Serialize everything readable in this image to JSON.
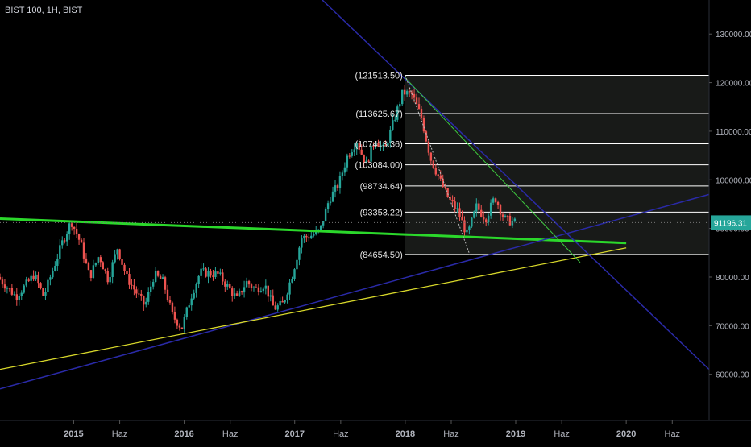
{
  "header": {
    "symbol_title": "BIST 100, 1H, BIST"
  },
  "colors": {
    "background": "#000000",
    "axis_text": "#b2b5be",
    "candle_up": "#26a69a",
    "candle_down": "#ef5350",
    "fib_line": "#ffffff",
    "fib_fill": "#1c1e1c",
    "green_trendline": "#2bd82b",
    "blue_trendline": "#2a2aa8",
    "yellow_trendline": "#d6d62a",
    "thin_green_trendline": "#3ec93e",
    "price_badge": "#26a69a"
  },
  "chart_data": {
    "type": "candlestick",
    "title": "BIST 100, 1H, BIST",
    "x_ticks": [
      "2015",
      "Haz",
      "2016",
      "Haz",
      "2017",
      "Haz",
      "2018",
      "Haz",
      "2019",
      "Haz",
      "2020",
      "Haz"
    ],
    "x_tick_dates": [
      "2015-01",
      "2015-06",
      "2016-01",
      "2016-06",
      "2017-01",
      "2017-06",
      "2018-01",
      "2018-06",
      "2019-01",
      "2019-06",
      "2020-01",
      "2020-06"
    ],
    "x_range": [
      "2014-05",
      "2020-10"
    ],
    "y_ticks": [
      "130000.00",
      "120000.00",
      "110000.00",
      "100000.00",
      "90000.00",
      "80000.00",
      "70000.00",
      "60000.00"
    ],
    "y_range": [
      50500,
      137000
    ],
    "current_price": "91196.31",
    "current_price_value": 91196.31,
    "fib_levels": [
      {
        "label": "(121513.50)",
        "value": 121513.5
      },
      {
        "label": "(113625.67)",
        "value": 113625.67
      },
      {
        "label": "(107413.36)",
        "value": 107413.36
      },
      {
        "label": "(103084.00)",
        "value": 103084.0
      },
      {
        "label": "(98734.64)",
        "value": 98734.64
      },
      {
        "label": "(93353.22)",
        "value": 93353.22
      },
      {
        "label": "(84654.50)",
        "value": 84654.5
      }
    ],
    "fib_range_dates": [
      "2018-01",
      "2020-10"
    ],
    "trendlines": [
      {
        "id": "green-thick",
        "from": [
          "2014-05",
          92000
        ],
        "to": [
          "2020-01",
          87000
        ]
      },
      {
        "id": "blue-lower",
        "from": [
          "2014-05",
          57000
        ],
        "to": [
          "2020-10",
          97000
        ]
      },
      {
        "id": "blue-upper",
        "from": [
          "2017-04",
          137000
        ],
        "to": [
          "2020-10",
          61000
        ]
      },
      {
        "id": "yellow",
        "from": [
          "2014-05",
          61000
        ],
        "to": [
          "2020-01",
          86000
        ]
      },
      {
        "id": "green-thin",
        "from": [
          "2018-01",
          121000
        ],
        "to": [
          "2019-08",
          83000
        ]
      }
    ],
    "price_path": [
      [
        "2014-05",
        80000
      ],
      [
        "2014-07",
        76000
      ],
      [
        "2014-09",
        80500
      ],
      [
        "2014-10",
        76000
      ],
      [
        "2014-12",
        87000
      ],
      [
        "2015-01",
        91500
      ],
      [
        "2015-02",
        87000
      ],
      [
        "2015-03",
        80000
      ],
      [
        "2015-04",
        84500
      ],
      [
        "2015-05",
        79500
      ],
      [
        "2015-06",
        86000
      ],
      [
        "2015-07",
        80000
      ],
      [
        "2015-08",
        77000
      ],
      [
        "2015-09",
        74000
      ],
      [
        "2015-10",
        80500
      ],
      [
        "2015-11",
        79000
      ],
      [
        "2015-12",
        72000
      ],
      [
        "2016-01",
        69500
      ],
      [
        "2016-02",
        76000
      ],
      [
        "2016-03",
        81000
      ],
      [
        "2016-05",
        80500
      ],
      [
        "2016-07",
        75500
      ],
      [
        "2016-08",
        79000
      ],
      [
        "2016-09",
        77500
      ],
      [
        "2016-10",
        78500
      ],
      [
        "2016-11",
        73500
      ],
      [
        "2016-12",
        74500
      ],
      [
        "2017-01",
        80500
      ],
      [
        "2017-02",
        88000
      ],
      [
        "2017-03",
        88500
      ],
      [
        "2017-04",
        89500
      ],
      [
        "2017-05",
        96000
      ],
      [
        "2017-06",
        99000
      ],
      [
        "2017-07",
        105000
      ],
      [
        "2017-08",
        108000
      ],
      [
        "2017-09",
        103000
      ],
      [
        "2017-10",
        108500
      ],
      [
        "2017-11",
        106000
      ],
      [
        "2017-12",
        112000
      ],
      [
        "2018-01",
        118000
      ],
      [
        "2018-02",
        117500
      ],
      [
        "2018-03",
        113000
      ],
      [
        "2018-04",
        104500
      ],
      [
        "2018-05",
        100000
      ],
      [
        "2018-06",
        96000
      ],
      [
        "2018-07",
        93500
      ],
      [
        "2018-08",
        88500
      ],
      [
        "2018-09",
        94500
      ],
      [
        "2018-10",
        92000
      ],
      [
        "2018-11",
        96500
      ],
      [
        "2018-12",
        92000
      ],
      [
        "2019-01",
        91196
      ]
    ]
  }
}
